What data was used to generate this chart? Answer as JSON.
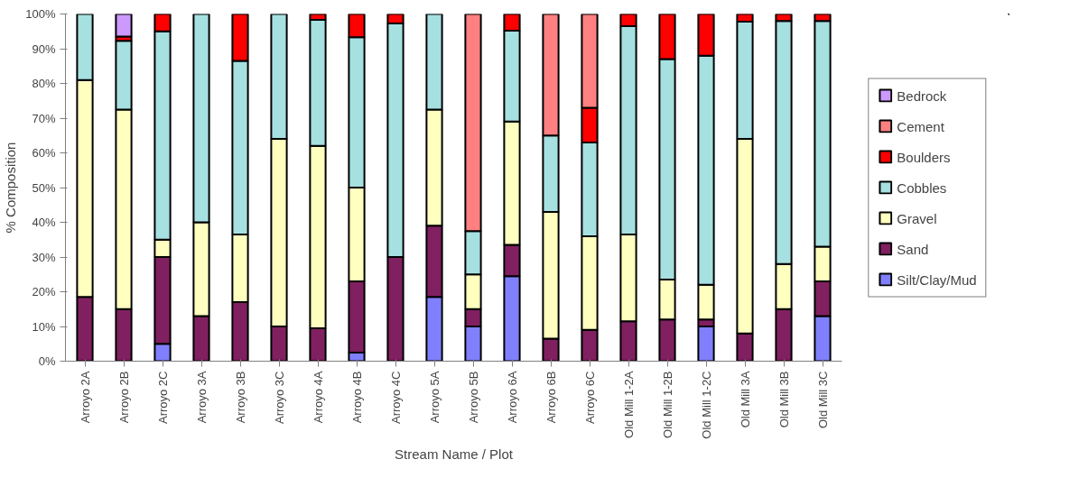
{
  "chart_data": {
    "type": "bar",
    "stacked": true,
    "xlabel": "Stream Name / Plot",
    "ylabel": "% Composition",
    "categories": [
      "Arroyo 2A",
      "Arroyo 2B",
      "Arroyo 2C",
      "Arroyo 3A",
      "Arroyo 3B",
      "Arroyo 3C",
      "Arroyo 4A",
      "Arroyo 4B",
      "Arroyo 4C",
      "Arroyo 5A",
      "Arroyo 5B",
      "Arroyo 6A",
      "Arroyo 6B",
      "Arroyo 6C",
      "Old Mill 1-2A",
      "Old Mill 1-2B",
      "Old Mill 1-2C",
      "Old Mill 3A",
      "Old Mill 3B",
      "Old Mill 3C"
    ],
    "series": [
      {
        "name": "Silt/Clay/Mud",
        "color": "#8080ff",
        "values": [
          null,
          null,
          5,
          null,
          null,
          null,
          null,
          2.5,
          null,
          18.5,
          10,
          24.5,
          null,
          null,
          null,
          null,
          10,
          null,
          null,
          13
        ]
      },
      {
        "name": "Sand",
        "color": "#802060",
        "values": [
          18.5,
          15,
          25,
          13,
          17,
          10,
          9.5,
          20.5,
          30,
          20.5,
          5,
          9,
          6.5,
          9,
          11.5,
          12,
          2,
          8,
          15,
          10
        ]
      },
      {
        "name": "Gravel",
        "color": "#ffffc0",
        "values": [
          62.5,
          57.5,
          5,
          27,
          19.5,
          54,
          52.5,
          27,
          null,
          33.5,
          10,
          35.5,
          36.5,
          27,
          25,
          11.5,
          10,
          56,
          13,
          10
        ]
      },
      {
        "name": "Cobbles",
        "color": "#a6e0e0",
        "values": [
          19,
          19.8,
          60,
          60,
          50,
          36,
          36.3,
          43.3,
          67.3,
          27.5,
          12.5,
          26.2,
          22,
          27,
          60,
          63.5,
          66,
          33.8,
          70,
          65
        ]
      },
      {
        "name": "Boulders",
        "color": "#ff0000",
        "values": [
          null,
          1.2,
          5,
          null,
          13.5,
          null,
          1.7,
          6.7,
          2.7,
          null,
          null,
          4.8,
          null,
          10,
          3.5,
          13,
          12,
          2.2,
          2,
          2
        ]
      },
      {
        "name": "Cement",
        "color": "#ff8080",
        "values": [
          null,
          null,
          null,
          null,
          null,
          null,
          null,
          null,
          null,
          null,
          62.5,
          null,
          35,
          27,
          null,
          null,
          null,
          null,
          null,
          null
        ]
      },
      {
        "name": "Bedrock",
        "color": "#cc99ff",
        "values": [
          null,
          6.5,
          null,
          null,
          null,
          null,
          null,
          null,
          null,
          null,
          null,
          null,
          null,
          null,
          null,
          null,
          null,
          null,
          null,
          null
        ]
      }
    ],
    "ylim": [
      0,
      100
    ],
    "yticks": [
      {
        "value": 0,
        "label": "0%"
      },
      {
        "value": 10,
        "label": "10%"
      },
      {
        "value": 20,
        "label": "20%"
      },
      {
        "value": 30,
        "label": "30%"
      },
      {
        "value": 40,
        "label": "40%"
      },
      {
        "value": 50,
        "label": "50%"
      },
      {
        "value": 60,
        "label": "60%"
      },
      {
        "value": 70,
        "label": "70%"
      },
      {
        "value": 80,
        "label": "80%"
      },
      {
        "value": 90,
        "label": "90%"
      },
      {
        "value": 100,
        "label": "100%"
      }
    ],
    "grid": false,
    "legend": "right"
  }
}
